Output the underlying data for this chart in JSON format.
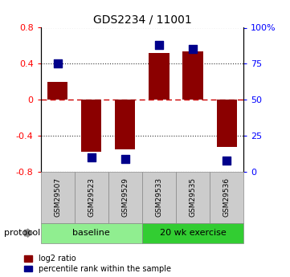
{
  "title": "GDS2234 / 11001",
  "samples": [
    "GSM29507",
    "GSM29523",
    "GSM29529",
    "GSM29533",
    "GSM29535",
    "GSM29536"
  ],
  "log2_ratio": [
    0.2,
    -0.58,
    -0.55,
    0.52,
    0.54,
    -0.52
  ],
  "percentile_rank": [
    75,
    10,
    9,
    88,
    85,
    8
  ],
  "ylim": [
    -0.8,
    0.8
  ],
  "yticks_left": [
    -0.8,
    -0.4,
    0.0,
    0.4,
    0.8
  ],
  "yticks_right": [
    0,
    25,
    50,
    75,
    100
  ],
  "bar_color": "#8B0000",
  "dot_color": "#00008B",
  "baseline_label": "baseline",
  "exercise_label": "20 wk exercise",
  "protocol_label": "protocol",
  "baseline_color": "#90EE90",
  "exercise_color": "#32CD32",
  "legend_red_label": "log2 ratio",
  "legend_blue_label": "percentile rank within the sample",
  "grid_color": "#333333",
  "zero_line_color": "#CC0000",
  "background_color": "#ffffff",
  "bar_width": 0.6,
  "dot_size": 55
}
